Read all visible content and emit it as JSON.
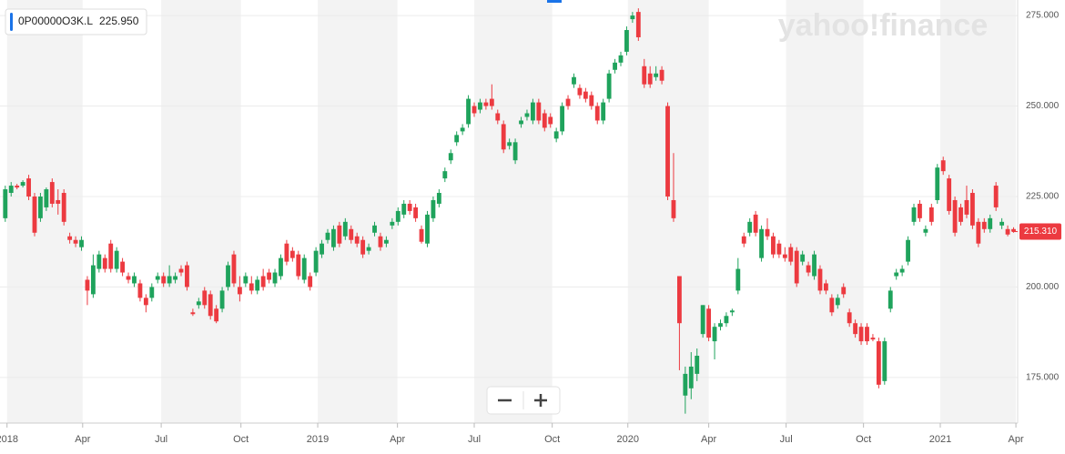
{
  "chart_data": {
    "type": "candlestick",
    "symbol": "0P00000O3K.L",
    "symbol_price": "225.950",
    "watermark": "yahoo!finance",
    "last_price": {
      "value": 215.31,
      "label": "215.310"
    },
    "up_color": "#1fa35c",
    "down_color": "#ec3a40",
    "xlim": [
      -0.9,
      172.7
    ],
    "xticks": [
      {
        "value": 0.3,
        "label": "2018"
      },
      {
        "value": 13.2,
        "label": "Apr"
      },
      {
        "value": 26.6,
        "label": "Jul"
      },
      {
        "value": 40.2,
        "label": "Oct"
      },
      {
        "value": 53.3,
        "label": "2019"
      },
      {
        "value": 66.9,
        "label": "Apr"
      },
      {
        "value": 80,
        "label": "Jul"
      },
      {
        "value": 93.3,
        "label": "Oct"
      },
      {
        "value": 106.2,
        "label": "2020"
      },
      {
        "value": 120,
        "label": "Apr"
      },
      {
        "value": 133.2,
        "label": "Jul"
      },
      {
        "value": 146.4,
        "label": "Oct"
      },
      {
        "value": 159.5,
        "label": "2021"
      },
      {
        "value": 172.4,
        "label": "Apr"
      }
    ],
    "ylim": [
      162.4,
      279.3
    ],
    "yticks": [
      {
        "value": 175,
        "label": "175.000"
      },
      {
        "value": 200,
        "label": "200.000"
      },
      {
        "value": 225,
        "label": "225.000"
      },
      {
        "value": 250,
        "label": "250.000"
      },
      {
        "value": 275,
        "label": "275.000"
      }
    ],
    "grid": true,
    "x": [
      0,
      1,
      2,
      3,
      4,
      5,
      6,
      7,
      8,
      9,
      10,
      11,
      12,
      13,
      14,
      15,
      16,
      17,
      18,
      19,
      20,
      21,
      22,
      23,
      24,
      25,
      26,
      27,
      28,
      29,
      30,
      31,
      32,
      33,
      34,
      35,
      36,
      37,
      38,
      39,
      40,
      41,
      42,
      43,
      44,
      45,
      46,
      47,
      48,
      49,
      50,
      51,
      52,
      53,
      54,
      55,
      56,
      57,
      58,
      59,
      60,
      61,
      62,
      63,
      64,
      65,
      66,
      67,
      68,
      69,
      70,
      71,
      72,
      73,
      74,
      75,
      76,
      77,
      78,
      79,
      80,
      81,
      82,
      83,
      84,
      85,
      86,
      87,
      88,
      89,
      90,
      91,
      92,
      93,
      94,
      95,
      96,
      97,
      98,
      99,
      100,
      101,
      102,
      103,
      104,
      105,
      106,
      107,
      108,
      109,
      110,
      111,
      112,
      113,
      114,
      115,
      116,
      117,
      118,
      119,
      120,
      121,
      122,
      123,
      124,
      125,
      126,
      127,
      128,
      129,
      130,
      131,
      132,
      133,
      134,
      135,
      136,
      137,
      138,
      139,
      140,
      141,
      142,
      143,
      144,
      145,
      146,
      147,
      148,
      149,
      150,
      151,
      152,
      153,
      154,
      155,
      156,
      157,
      158,
      159,
      160,
      161,
      162,
      163,
      164,
      165,
      166,
      167,
      168,
      169,
      170,
      171,
      172
    ],
    "ohlc": [
      [
        219,
        228,
        218,
        227
      ],
      [
        226,
        229,
        225,
        228
      ],
      [
        228,
        228.5,
        227,
        227.5
      ],
      [
        228,
        229.5,
        227.5,
        229
      ],
      [
        230,
        231,
        224,
        225
      ],
      [
        225,
        226,
        214,
        215
      ],
      [
        219,
        226,
        218,
        225
      ],
      [
        222,
        227.5,
        221,
        227
      ],
      [
        229,
        230,
        222,
        223
      ],
      [
        224,
        227,
        220,
        223
      ],
      [
        226,
        227,
        217,
        218
      ],
      [
        214,
        215,
        212,
        213
      ],
      [
        213,
        214,
        211,
        212
      ],
      [
        211,
        214,
        210,
        213
      ],
      [
        202,
        203,
        195,
        199
      ],
      [
        198,
        209,
        197,
        206
      ],
      [
        205,
        210,
        204,
        209
      ],
      [
        208,
        209,
        204,
        205
      ],
      [
        212,
        213,
        204,
        205
      ],
      [
        205,
        211,
        204,
        210
      ],
      [
        207,
        208,
        203,
        204
      ],
      [
        203,
        204,
        201,
        202
      ],
      [
        201,
        204,
        200,
        203
      ],
      [
        201,
        202,
        196,
        197
      ],
      [
        197,
        198,
        193,
        195
      ],
      [
        197,
        201,
        196,
        200
      ],
      [
        202,
        204,
        201,
        203
      ],
      [
        203,
        204,
        200,
        201
      ],
      [
        201,
        206,
        200,
        203
      ],
      [
        202,
        204,
        201,
        203
      ],
      [
        205,
        206,
        203,
        204
      ],
      [
        206,
        207,
        199,
        200
      ],
      [
        193,
        194,
        192,
        192.5
      ],
      [
        195,
        197,
        194,
        196
      ],
      [
        199,
        200,
        194,
        195
      ],
      [
        198,
        199,
        191,
        192
      ],
      [
        194,
        195,
        190,
        190.5
      ],
      [
        194,
        200,
        193,
        199
      ],
      [
        200,
        207,
        199,
        206
      ],
      [
        209,
        210,
        200,
        201
      ],
      [
        200,
        203,
        196,
        198
      ],
      [
        201,
        204,
        200,
        203
      ],
      [
        201,
        203,
        198,
        199
      ],
      [
        199,
        203,
        198,
        202
      ],
      [
        203,
        205,
        199,
        200
      ],
      [
        204,
        205,
        201,
        202
      ],
      [
        201,
        205,
        200,
        204
      ],
      [
        203,
        209,
        202,
        208
      ],
      [
        212,
        213,
        206,
        207
      ],
      [
        210,
        211,
        207,
        208
      ],
      [
        209,
        210,
        202,
        203
      ],
      [
        202,
        209,
        201,
        208
      ],
      [
        203,
        204,
        199,
        200
      ],
      [
        204,
        211,
        203,
        210
      ],
      [
        209,
        213,
        208,
        212
      ],
      [
        213,
        216,
        212,
        215
      ],
      [
        211,
        217,
        210,
        216
      ],
      [
        217,
        218,
        211,
        212
      ],
      [
        214,
        219,
        213,
        218
      ],
      [
        216,
        217,
        212,
        213
      ],
      [
        214,
        215,
        211,
        212
      ],
      [
        213,
        214,
        208,
        209
      ],
      [
        210,
        212,
        209,
        211
      ],
      [
        215,
        218,
        214,
        217
      ],
      [
        214,
        215,
        210,
        211
      ],
      [
        212,
        214,
        211,
        213
      ],
      [
        217,
        219,
        216,
        218
      ],
      [
        218,
        222,
        217,
        221
      ],
      [
        220,
        224,
        219,
        223
      ],
      [
        223,
        224,
        220,
        221
      ],
      [
        222,
        223,
        218,
        219
      ],
      [
        216,
        217,
        212,
        212.5
      ],
      [
        212,
        221,
        211,
        220
      ],
      [
        219,
        225,
        218,
        224
      ],
      [
        223,
        227,
        222,
        226
      ],
      [
        230,
        233,
        229,
        232
      ],
      [
        235,
        238,
        234,
        237
      ],
      [
        240,
        243,
        239,
        242
      ],
      [
        243,
        245,
        242,
        244
      ],
      [
        245,
        253,
        244,
        252
      ],
      [
        250,
        251,
        247,
        248
      ],
      [
        249,
        252,
        248,
        251
      ],
      [
        251,
        252,
        249,
        250
      ],
      [
        252,
        256,
        249,
        250
      ],
      [
        248,
        249,
        245,
        246
      ],
      [
        245,
        246,
        237,
        238
      ],
      [
        239,
        241,
        238,
        240
      ],
      [
        235,
        241,
        234,
        240
      ],
      [
        245,
        247,
        244,
        246
      ],
      [
        247,
        249,
        246,
        248
      ],
      [
        246,
        252,
        245,
        251
      ],
      [
        251,
        252,
        245,
        246
      ],
      [
        248,
        249,
        243,
        244
      ],
      [
        247,
        248,
        244,
        245
      ],
      [
        241,
        244,
        240,
        243
      ],
      [
        243,
        251,
        242,
        250
      ],
      [
        252,
        253,
        249,
        250
      ],
      [
        256,
        259,
        255,
        258
      ],
      [
        255,
        256,
        252,
        253
      ],
      [
        254,
        255,
        251,
        252
      ],
      [
        253,
        254,
        249,
        250
      ],
      [
        250,
        251,
        245,
        246
      ],
      [
        246,
        252,
        245,
        251
      ],
      [
        252,
        260,
        251,
        259
      ],
      [
        260,
        263,
        259,
        262
      ],
      [
        262,
        265,
        261,
        264
      ],
      [
        265,
        272,
        264,
        271
      ],
      [
        274,
        276,
        273,
        275
      ],
      [
        276,
        277,
        268,
        269
      ],
      [
        261,
        263,
        255,
        256
      ],
      [
        259,
        261,
        255,
        256
      ],
      [
        258,
        261,
        257,
        259
      ],
      [
        260,
        261,
        256,
        257
      ],
      [
        250,
        251,
        224,
        225
      ],
      [
        224,
        237,
        218,
        219
      ],
      [
        203,
        203,
        177,
        190
      ],
      [
        170,
        178,
        165,
        176
      ],
      [
        172,
        182,
        169,
        178
      ],
      [
        176,
        183,
        174,
        181
      ],
      [
        187,
        195,
        186,
        195
      ],
      [
        194,
        195,
        185,
        186
      ],
      [
        185,
        190,
        180,
        189
      ],
      [
        189,
        191,
        188,
        190
      ],
      [
        190,
        193,
        189,
        192
      ],
      [
        193,
        194,
        192,
        193.5
      ],
      [
        199,
        208,
        198,
        205
      ],
      [
        214,
        215,
        211,
        212
      ],
      [
        215,
        219,
        214,
        218
      ],
      [
        220,
        221,
        214,
        215
      ],
      [
        208,
        217,
        207,
        216
      ],
      [
        216,
        219,
        213,
        214
      ],
      [
        214,
        215,
        208,
        209
      ],
      [
        212,
        213,
        208,
        209
      ],
      [
        209,
        211,
        207,
        208
      ],
      [
        211,
        212,
        206,
        207
      ],
      [
        210,
        211,
        200,
        201
      ],
      [
        207,
        210,
        206,
        209
      ],
      [
        206,
        207,
        203,
        204
      ],
      [
        203,
        210,
        202,
        209
      ],
      [
        205,
        206,
        198,
        199
      ],
      [
        201,
        202,
        198,
        199
      ],
      [
        197,
        198,
        192,
        193
      ],
      [
        195,
        198,
        194,
        197
      ],
      [
        200,
        201,
        197,
        198
      ],
      [
        193,
        194,
        189,
        190
      ],
      [
        190,
        191,
        186,
        187
      ],
      [
        189,
        190,
        184,
        185
      ],
      [
        189,
        190,
        184,
        185
      ],
      [
        186,
        187,
        185,
        185.5
      ],
      [
        185,
        186,
        172,
        173
      ],
      [
        174,
        186,
        173,
        185
      ],
      [
        194,
        200,
        193,
        199
      ],
      [
        203,
        205,
        202,
        204
      ],
      [
        204,
        206,
        203,
        205
      ],
      [
        207,
        214,
        206,
        213
      ],
      [
        218,
        223,
        217,
        222
      ],
      [
        223,
        224,
        218,
        219
      ],
      [
        215,
        217,
        214,
        216
      ],
      [
        222,
        223,
        217,
        218
      ],
      [
        224,
        234,
        223,
        233
      ],
      [
        235,
        236,
        231,
        232
      ],
      [
        230,
        231,
        220,
        221
      ],
      [
        224,
        225,
        214,
        215
      ],
      [
        222,
        223,
        217,
        218
      ],
      [
        224,
        228,
        219,
        220
      ],
      [
        226,
        227,
        216,
        217
      ],
      [
        218,
        219,
        211,
        212
      ],
      [
        218,
        219,
        215,
        216
      ],
      [
        216,
        220,
        215,
        219
      ],
      [
        228,
        229,
        221,
        222
      ],
      [
        217,
        219,
        216,
        218
      ],
      [
        216,
        217,
        214,
        214.5
      ],
      [
        216,
        216.5,
        215,
        215.3
      ]
    ]
  }
}
